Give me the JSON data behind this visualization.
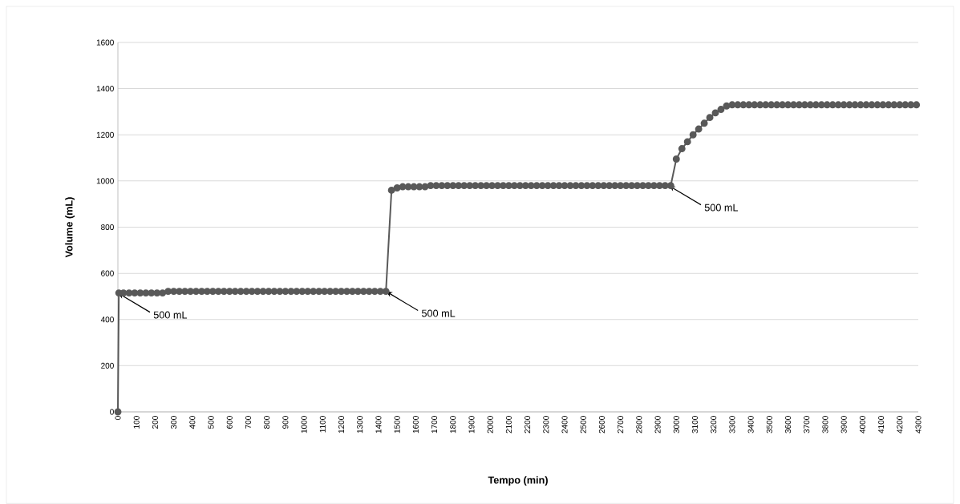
{
  "chart_data": {
    "type": "line",
    "xlabel": "Tempo (min)",
    "ylabel": "Volume (mL)",
    "x": [
      0,
      5,
      30,
      60,
      90,
      120,
      150,
      180,
      210,
      240,
      270,
      300,
      330,
      360,
      390,
      420,
      450,
      480,
      510,
      540,
      570,
      600,
      630,
      660,
      690,
      720,
      750,
      780,
      810,
      840,
      870,
      900,
      930,
      960,
      990,
      1020,
      1050,
      1080,
      1110,
      1140,
      1170,
      1200,
      1230,
      1260,
      1290,
      1320,
      1350,
      1380,
      1410,
      1440,
      1470,
      1500,
      1530,
      1560,
      1590,
      1620,
      1650,
      1680,
      1710,
      1740,
      1770,
      1800,
      1830,
      1860,
      1890,
      1920,
      1950,
      1980,
      2010,
      2040,
      2070,
      2100,
      2130,
      2160,
      2190,
      2220,
      2250,
      2280,
      2310,
      2340,
      2370,
      2400,
      2430,
      2460,
      2490,
      2520,
      2550,
      2580,
      2610,
      2640,
      2670,
      2700,
      2730,
      2760,
      2790,
      2820,
      2850,
      2880,
      2910,
      2940,
      2970,
      3000,
      3030,
      3060,
      3090,
      3120,
      3150,
      3180,
      3210,
      3240,
      3270,
      3300,
      3330,
      3360,
      3390,
      3420,
      3450,
      3480,
      3510,
      3540,
      3570,
      3600,
      3630,
      3660,
      3690,
      3720,
      3750,
      3780,
      3810,
      3840,
      3870,
      3900,
      3930,
      3960,
      3990,
      4020,
      4050,
      4080,
      4110,
      4140,
      4170,
      4200,
      4230,
      4260,
      4290
    ],
    "series": [
      {
        "color": "#595959",
        "values": [
          0,
          515,
          515,
          515,
          515,
          515,
          515,
          515,
          515,
          515,
          522,
          522,
          522,
          522,
          522,
          522,
          522,
          522,
          522,
          522,
          522,
          522,
          522,
          522,
          522,
          522,
          522,
          522,
          522,
          522,
          522,
          522,
          522,
          522,
          522,
          522,
          522,
          522,
          522,
          522,
          522,
          522,
          522,
          522,
          522,
          522,
          522,
          522,
          522,
          522,
          960,
          970,
          975,
          975,
          975,
          975,
          975,
          980,
          980,
          980,
          980,
          980,
          980,
          980,
          980,
          980,
          980,
          980,
          980,
          980,
          980,
          980,
          980,
          980,
          980,
          980,
          980,
          980,
          980,
          980,
          980,
          980,
          980,
          980,
          980,
          980,
          980,
          980,
          980,
          980,
          980,
          980,
          980,
          980,
          980,
          980,
          980,
          980,
          980,
          980,
          980,
          1095,
          1140,
          1170,
          1200,
          1225,
          1250,
          1275,
          1295,
          1310,
          1325,
          1330,
          1330,
          1330,
          1330,
          1330,
          1330,
          1330,
          1330,
          1330,
          1330,
          1330,
          1330,
          1330,
          1330,
          1330,
          1330,
          1330,
          1330,
          1330,
          1330,
          1330,
          1330,
          1330,
          1330,
          1330,
          1330,
          1330,
          1330,
          1330,
          1330,
          1330,
          1330,
          1330,
          1330
        ]
      }
    ],
    "xlim": [
      0,
      4300
    ],
    "ylim": [
      0,
      1600
    ],
    "xticks": [
      0,
      100,
      200,
      300,
      400,
      500,
      600,
      700,
      800,
      900,
      1000,
      1100,
      1200,
      1300,
      1400,
      1500,
      1600,
      1700,
      1800,
      1900,
      2000,
      2100,
      2200,
      2300,
      2400,
      2500,
      2600,
      2700,
      2800,
      2900,
      3000,
      3100,
      3200,
      3300,
      3400,
      3500,
      3600,
      3700,
      3800,
      3900,
      4000,
      4100,
      4200,
      4300
    ],
    "yticks": [
      0,
      200,
      400,
      600,
      800,
      1000,
      1200,
      1400,
      1600
    ],
    "grid": "y",
    "marker": "circle",
    "line_style": "solid",
    "annotations": [
      {
        "text": "500 mL",
        "x": 0,
        "y": 515
      },
      {
        "text": "500 mL",
        "x": 1440,
        "y": 522
      },
      {
        "text": "500 mL",
        "x": 2960,
        "y": 980
      }
    ]
  }
}
